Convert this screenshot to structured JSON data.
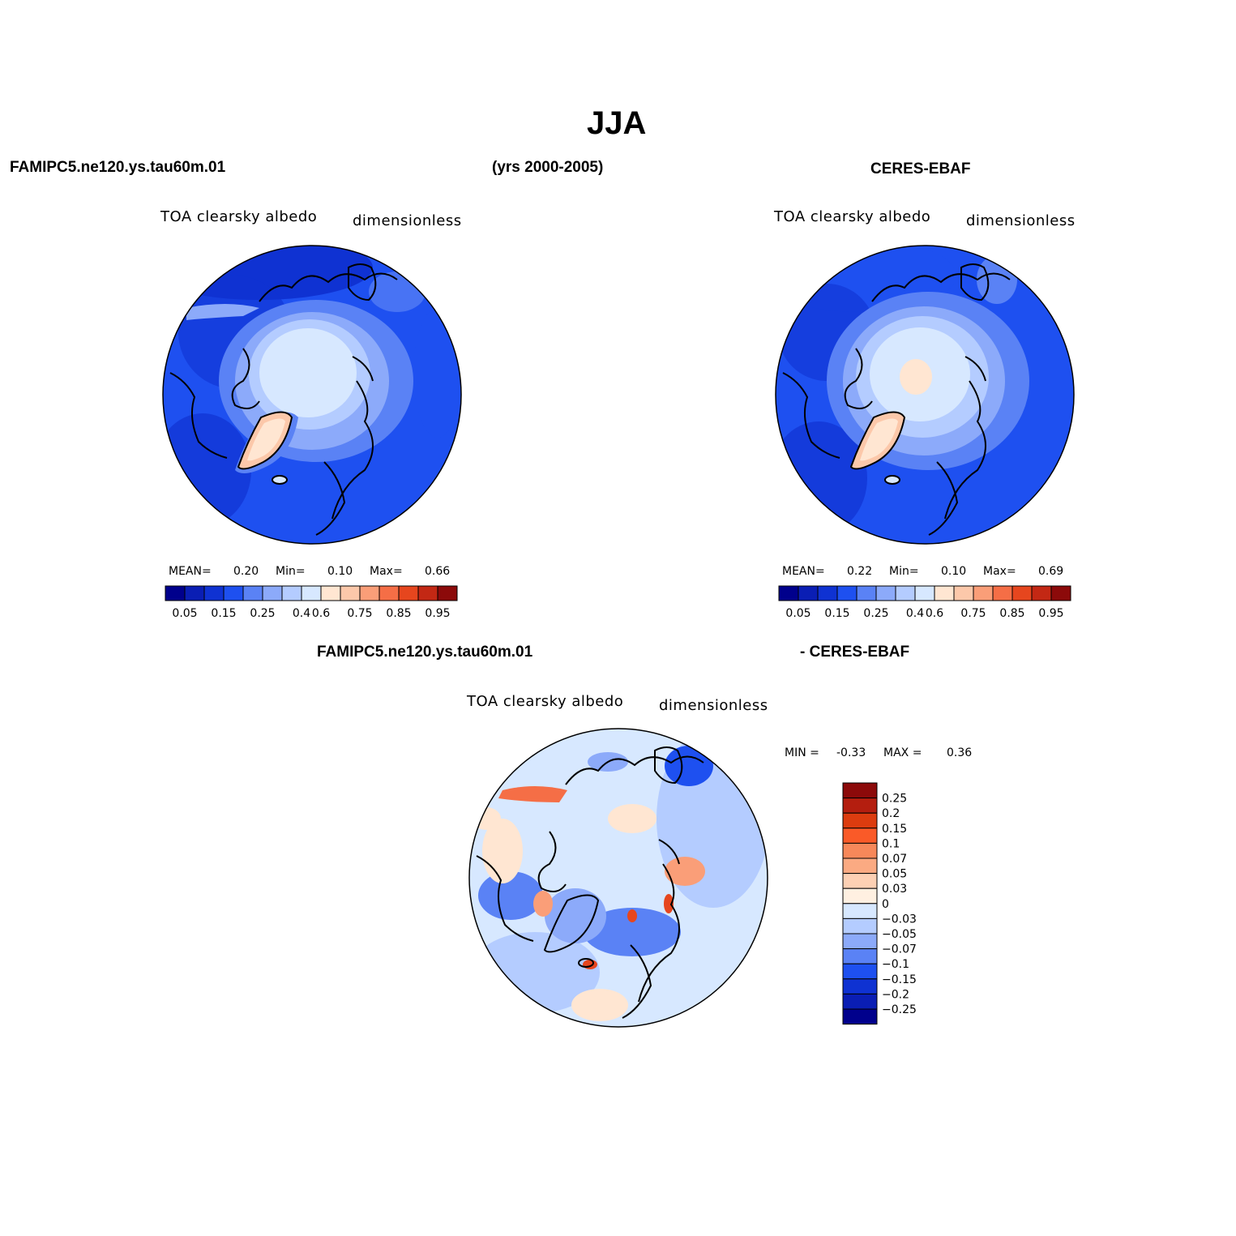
{
  "figure": {
    "title": "JJA",
    "left_header": "FAMIPC5.ne120.ys.tau60m.01",
    "center_header": "(yrs 2000-2005)",
    "right_header": "CERES-EBAF",
    "bottom_header_left": "FAMIPC5.ne120.ys.tau60m.01",
    "bottom_header_right": "- CERES-EBAF"
  },
  "panels": [
    {
      "variable": "TOA clearsky albedo",
      "units": "dimensionless",
      "mean_label": "MEAN=",
      "mean_value": "0.20",
      "min_label": "Min=",
      "min_value": "0.10",
      "max_label": "Max=",
      "max_value": "0.66"
    },
    {
      "variable": "TOA clearsky albedo",
      "units": "dimensionless",
      "mean_label": "MEAN=",
      "mean_value": "0.22",
      "min_label": "Min=",
      "min_value": "0.10",
      "max_label": "Max=",
      "max_value": "0.69"
    },
    {
      "variable": "TOA clearsky albedo",
      "units": "dimensionless",
      "min_label": "MIN =",
      "min_value": "-0.33",
      "max_label": "MAX =",
      "max_value": "0.36"
    }
  ],
  "colorbar_horizontal": {
    "colors": [
      "#00008c",
      "#0a1eb4",
      "#0f32d2",
      "#1e50f0",
      "#5a82f5",
      "#8caafa",
      "#b4ccff",
      "#d7e8ff",
      "#ffe6d2",
      "#fcc8aa",
      "#fa9e78",
      "#f56e46",
      "#e6461e",
      "#c32814",
      "#8c0a0a"
    ],
    "tick_labels": [
      "0.05",
      "0.15",
      "0.25",
      "0.4",
      "0.6",
      "0.75",
      "0.85",
      "0.95"
    ]
  },
  "colorbar_vertical": {
    "colors": [
      "#8c0a0a",
      "#b41e0f",
      "#dc3c0f",
      "#fa5a28",
      "#f7885a",
      "#fbaa82",
      "#fdd0b4",
      "#fff0e1",
      "#d7e8ff",
      "#b4ccff",
      "#8caafa",
      "#5a82f5",
      "#1e50f0",
      "#0f32d2",
      "#0a1eb4",
      "#00008c"
    ],
    "tick_labels": [
      "0.25",
      "0.2",
      "0.15",
      "0.1",
      "0.07",
      "0.05",
      "0.03",
      "0",
      "-0.03",
      "-0.05",
      "-0.07",
      "-0.1",
      "-0.15",
      "-0.2",
      "-0.25"
    ]
  }
}
